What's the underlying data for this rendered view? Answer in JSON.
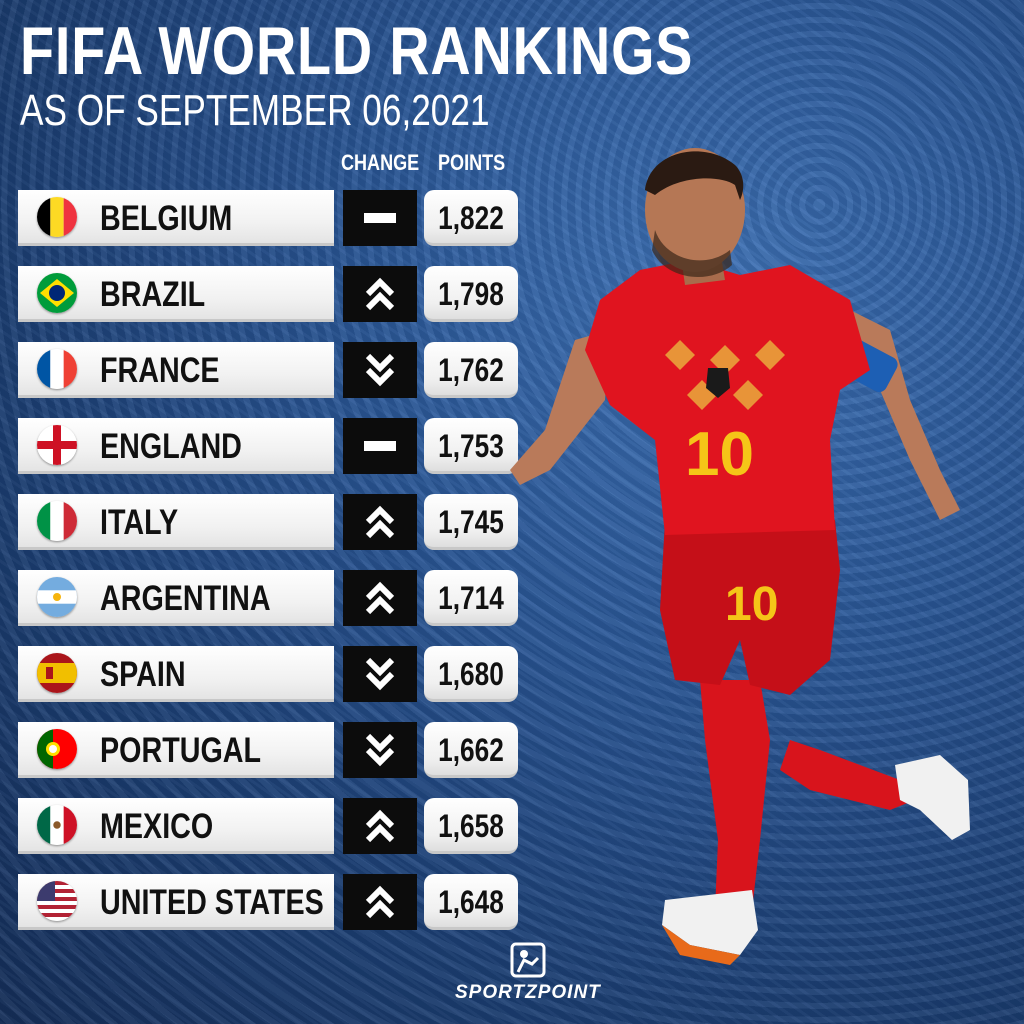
{
  "header": {
    "title": "FIFA WORLD RANKINGS",
    "subtitle": "AS OF SEPTEMBER 06,2021",
    "col_change": "CHANGE",
    "col_points": "POINTS"
  },
  "colors": {
    "background": "#2a5797",
    "change_box": "#0c0c0c",
    "row_box": "#ffffff"
  },
  "rankings": [
    {
      "country": "BELGIUM",
      "flag": "belgium-flag-icon",
      "change": "none",
      "points": "1,822"
    },
    {
      "country": "BRAZIL",
      "flag": "brazil-flag-icon",
      "change": "up",
      "points": "1,798"
    },
    {
      "country": "FRANCE",
      "flag": "france-flag-icon",
      "change": "down",
      "points": "1,762"
    },
    {
      "country": "ENGLAND",
      "flag": "england-flag-icon",
      "change": "none",
      "points": "1,753"
    },
    {
      "country": "ITALY",
      "flag": "italy-flag-icon",
      "change": "up",
      "points": "1,745"
    },
    {
      "country": "ARGENTINA",
      "flag": "argentina-flag-icon",
      "change": "up",
      "points": "1,714"
    },
    {
      "country": "SPAIN",
      "flag": "spain-flag-icon",
      "change": "down",
      "points": "1,680"
    },
    {
      "country": "PORTUGAL",
      "flag": "portugal-flag-icon",
      "change": "down",
      "points": "1,662"
    },
    {
      "country": "MEXICO",
      "flag": "mexico-flag-icon",
      "change": "up",
      "points": "1,658"
    },
    {
      "country": "UNITED STATES",
      "flag": "usa-flag-icon",
      "change": "up",
      "points": "1,648"
    }
  ],
  "player": {
    "shirt_number": "10",
    "icon": "football-player-illustration"
  },
  "brand": {
    "name": "SPORTZPOINT",
    "icon": "sportzpoint-logo-icon"
  }
}
